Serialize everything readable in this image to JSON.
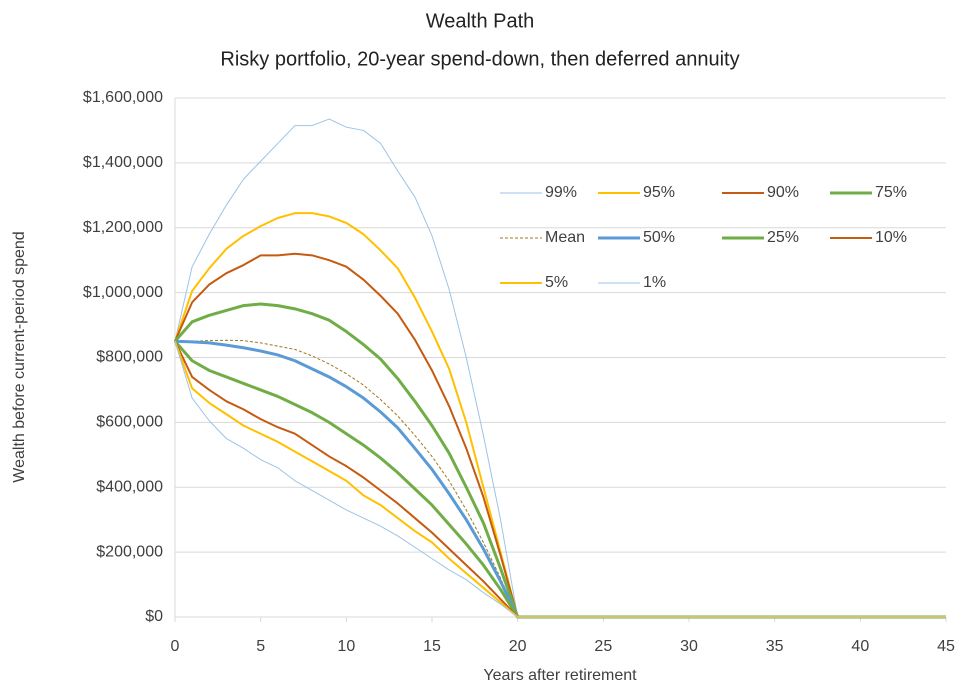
{
  "chart_data": {
    "type": "line",
    "title": "Wealth Path",
    "subtitle": "Risky portfolio, 20-year spend-down, then deferred annuity",
    "xlabel": "Years after retirement",
    "ylabel": "Wealth before current-period spend",
    "x": [
      0,
      1,
      2,
      3,
      4,
      5,
      6,
      7,
      8,
      9,
      10,
      11,
      12,
      13,
      14,
      15,
      16,
      17,
      18,
      19,
      20,
      45
    ],
    "xlim": [
      0,
      45
    ],
    "xticks": [
      0,
      5,
      10,
      15,
      20,
      25,
      30,
      35,
      40,
      45
    ],
    "ylim": [
      0,
      1600000
    ],
    "yticks": [
      {
        "value": 0,
        "label": "$0"
      },
      {
        "value": 200000,
        "label": "$200,000"
      },
      {
        "value": 400000,
        "label": "$400,000"
      },
      {
        "value": 600000,
        "label": "$600,000"
      },
      {
        "value": 800000,
        "label": "$800,000"
      },
      {
        "value": 1000000,
        "label": "$1,000,000"
      },
      {
        "value": 1200000,
        "label": "$1,200,000"
      },
      {
        "value": 1400000,
        "label": "$1,400,000"
      },
      {
        "value": 1600000,
        "label": "$1,600,000"
      }
    ],
    "grid": true,
    "legend": "upper right",
    "series": [
      {
        "name": "99%",
        "color": "#9dc3e6",
        "width": 1,
        "dash": false,
        "values": [
          850000,
          1080000,
          1180000,
          1270000,
          1350000,
          1405000,
          1460000,
          1515000,
          1515000,
          1535000,
          1510000,
          1500000,
          1460000,
          1375000,
          1295000,
          1175000,
          1010000,
          800000,
          560000,
          300000,
          0,
          0
        ]
      },
      {
        "name": "95%",
        "color": "#ffc000",
        "width": 2,
        "dash": false,
        "values": [
          850000,
          1005000,
          1075000,
          1135000,
          1175000,
          1205000,
          1230000,
          1245000,
          1245000,
          1235000,
          1215000,
          1180000,
          1130000,
          1075000,
          985000,
          880000,
          765000,
          600000,
          400000,
          200000,
          0,
          0
        ]
      },
      {
        "name": "90%",
        "color": "#c55a11",
        "width": 2,
        "dash": false,
        "values": [
          850000,
          970000,
          1025000,
          1060000,
          1085000,
          1115000,
          1115000,
          1120000,
          1115000,
          1100000,
          1080000,
          1040000,
          990000,
          935000,
          855000,
          760000,
          650000,
          520000,
          370000,
          190000,
          0,
          0
        ]
      },
      {
        "name": "75%",
        "color": "#70ad47",
        "width": 3,
        "dash": false,
        "values": [
          850000,
          910000,
          930000,
          945000,
          960000,
          965000,
          960000,
          950000,
          935000,
          915000,
          880000,
          840000,
          795000,
          735000,
          665000,
          590000,
          505000,
          400000,
          290000,
          150000,
          0,
          0
        ]
      },
      {
        "name": "Mean",
        "color": "#9c7a1a",
        "width": 1,
        "dash": true,
        "values": [
          850000,
          850000,
          852000,
          853000,
          852000,
          845000,
          835000,
          825000,
          805000,
          780000,
          750000,
          715000,
          670000,
          620000,
          560000,
          495000,
          420000,
          330000,
          230000,
          120000,
          0,
          0
        ]
      },
      {
        "name": "50%",
        "color": "#5b9bd5",
        "width": 3,
        "dash": false,
        "values": [
          850000,
          848000,
          845000,
          838000,
          830000,
          820000,
          808000,
          790000,
          765000,
          740000,
          710000,
          675000,
          632000,
          583000,
          520000,
          455000,
          380000,
          300000,
          210000,
          110000,
          0,
          0
        ]
      },
      {
        "name": "25%",
        "color": "#70ad47",
        "width": 3,
        "dash": false,
        "values": [
          850000,
          790000,
          760000,
          740000,
          720000,
          700000,
          680000,
          655000,
          630000,
          600000,
          565000,
          530000,
          490000,
          445000,
          395000,
          345000,
          285000,
          225000,
          160000,
          85000,
          0,
          0
        ]
      },
      {
        "name": "10%",
        "color": "#c55a11",
        "width": 2,
        "dash": false,
        "values": [
          850000,
          740000,
          700000,
          665000,
          640000,
          610000,
          585000,
          565000,
          530000,
          495000,
          465000,
          430000,
          390000,
          350000,
          305000,
          260000,
          210000,
          160000,
          110000,
          55000,
          0,
          0
        ]
      },
      {
        "name": "5%",
        "color": "#ffc000",
        "width": 2,
        "dash": false,
        "values": [
          850000,
          705000,
          660000,
          625000,
          590000,
          565000,
          540000,
          510000,
          480000,
          450000,
          420000,
          375000,
          345000,
          305000,
          265000,
          230000,
          180000,
          135000,
          90000,
          45000,
          0,
          0
        ]
      },
      {
        "name": "1%",
        "color": "#9dc3e6",
        "width": 1,
        "dash": false,
        "values": [
          850000,
          675000,
          605000,
          550000,
          520000,
          485000,
          460000,
          420000,
          390000,
          360000,
          330000,
          305000,
          280000,
          250000,
          215000,
          180000,
          145000,
          115000,
          75000,
          40000,
          0,
          0
        ]
      }
    ]
  }
}
